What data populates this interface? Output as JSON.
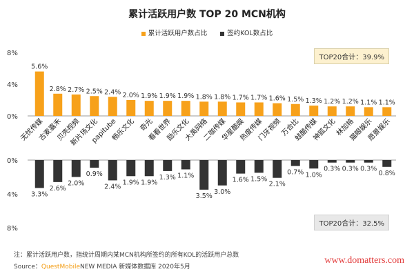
{
  "header": {
    "title": "累计活跃用户数 TOP 20 MCN机构"
  },
  "legend": [
    {
      "label": "累计活跃用户数占比",
      "color": "#f7a11a"
    },
    {
      "label": "签约KOL数占比",
      "color": "#333333"
    }
  ],
  "totals": {
    "top": "TOP20合计：39.9%",
    "bottom": "TOP20合计：32.5%"
  },
  "notes": {
    "line1": "注：累计活跃用户数，指统计周期内某MCN机构所签约的所有KOL的活跃用户总数",
    "source_prefix": "Source：",
    "source_brand": "QuestMobile",
    "source_rest": "NEW MEDIA 新媒体数据库 2020年5月"
  },
  "watermark": "www.domatters.com",
  "chart_data": {
    "type": "bar",
    "categories": [
      "无忧传媒",
      "古麦嘉禾",
      "贝壳视频",
      "新片场文化",
      "papitube",
      "畅乐文化",
      "奇光",
      "看看世界",
      "励乐文化",
      "大禹网络",
      "二咖传媒",
      "华星酷娱",
      "热度传媒",
      "门牙视频",
      "万合比",
      "蛙酷传媒",
      "神狐文化",
      "林加格",
      "猫眼娱乐",
      "愿景娱乐"
    ],
    "series": [
      {
        "name": "累计活跃用户数占比",
        "values": [
          5.6,
          2.8,
          2.7,
          2.5,
          2.4,
          2.0,
          1.9,
          1.9,
          1.9,
          1.8,
          1.8,
          1.7,
          1.7,
          1.6,
          1.5,
          1.3,
          1.2,
          1.2,
          1.1,
          1.1
        ],
        "labels": [
          "5.6%",
          "2.8%",
          "2.7%",
          "2.5%",
          "2.4%",
          "2.0%",
          "1.9%",
          "1.9%",
          "1.9%",
          "1.8%",
          "1.8%",
          "1.7%",
          "1.7%",
          "1.6%",
          "1.5%",
          "1.3%",
          "1.2%",
          "1.2%",
          "1.1%",
          "1.1%"
        ],
        "color": "#f7a11a"
      },
      {
        "name": "签约KOL数占比",
        "values": [
          3.3,
          2.6,
          2.0,
          0.9,
          2.4,
          1.9,
          1.9,
          1.3,
          1.1,
          3.5,
          3.0,
          1.6,
          1.5,
          2.1,
          0.7,
          1.0,
          0.3,
          0.3,
          0.3,
          0.8
        ],
        "labels": [
          "3.3%",
          "2.6%",
          "2.0%",
          "0.9%",
          "2.4%",
          "1.9%",
          "1.9%",
          "1.3%",
          "1.1%",
          "3.5%",
          "3.0%",
          "1.6%",
          "1.5%",
          "2.1%",
          "0.7%",
          "1.0%",
          "0.3%",
          "0.3%",
          "0.3%",
          "0.8%"
        ],
        "color": "#333333"
      }
    ],
    "upper_axis": {
      "ticks": [
        "8%",
        "4%",
        "0%"
      ],
      "ylim": [
        0,
        8
      ]
    },
    "lower_axis": {
      "ticks": [
        "0%",
        "4%",
        "8%"
      ],
      "ylim": [
        0,
        8
      ]
    }
  }
}
